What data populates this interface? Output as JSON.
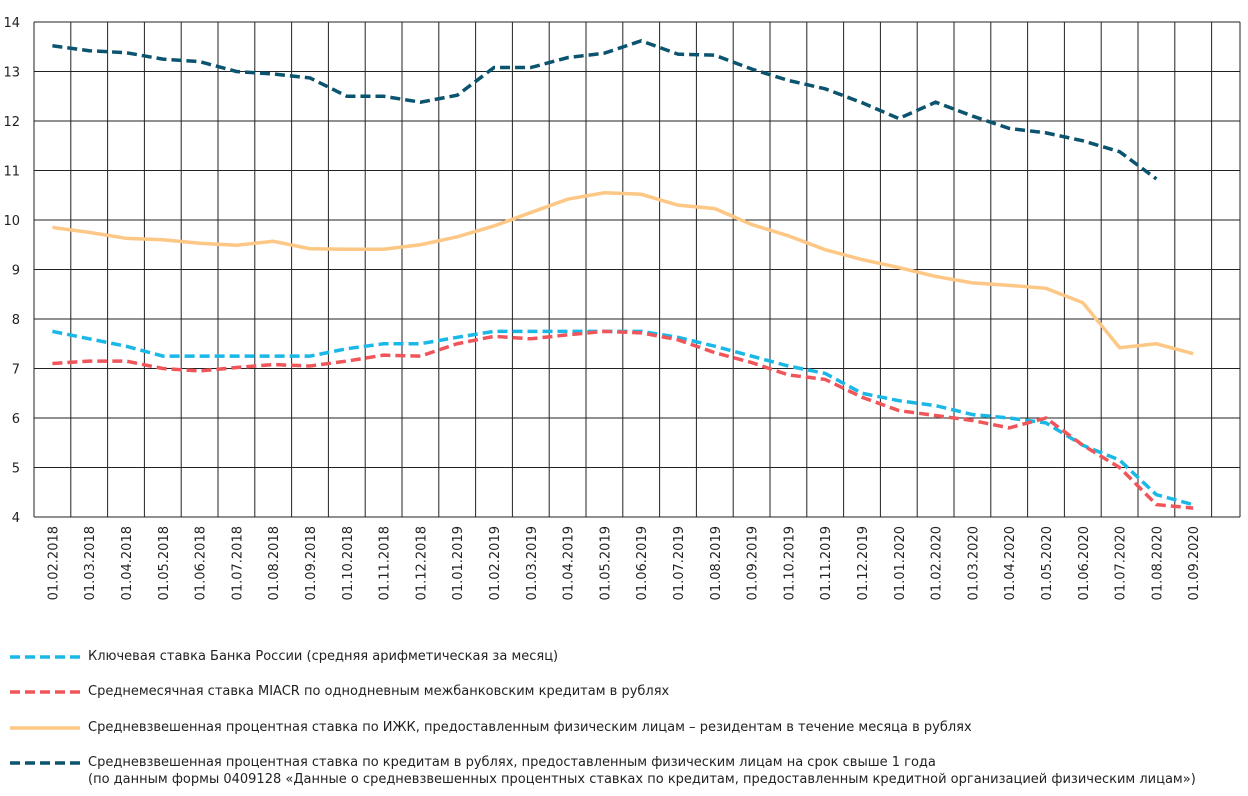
{
  "chart_data": {
    "type": "line",
    "categories": [
      "01.02.2018",
      "01.03.2018",
      "01.04.2018",
      "01.05.2018",
      "01.06.2018",
      "01.07.2018",
      "01.08.2018",
      "01.09.2018",
      "01.10.2018",
      "01.11.2018",
      "01.12.2018",
      "01.01.2019",
      "01.02.2019",
      "01.03.2019",
      "01.04.2019",
      "01.05.2019",
      "01.06.2019",
      "01.07.2019",
      "01.08.2019",
      "01.09.2019",
      "01.10.2019",
      "01.11.2019",
      "01.12.2019",
      "01.01.2020",
      "01.02.2020",
      "01.03.2020",
      "01.04.2020",
      "01.05.2020",
      "01.06.2020",
      "01.07.2020",
      "01.08.2020",
      "01.09.2020"
    ],
    "ylim": [
      4,
      14
    ],
    "yticks": [
      4,
      5,
      6,
      7,
      8,
      9,
      10,
      11,
      12,
      13,
      14
    ],
    "grid": true,
    "series": [
      {
        "name": "Ключевая ставка Банка России (средняя арифметическая за месяц)",
        "color": "#1ab8e6",
        "dashed": true,
        "values": [
          7.75,
          7.6,
          7.45,
          7.25,
          7.25,
          7.25,
          7.25,
          7.25,
          7.4,
          7.5,
          7.5,
          7.63,
          7.75,
          7.75,
          7.75,
          7.75,
          7.75,
          7.63,
          7.45,
          7.25,
          7.05,
          6.9,
          6.5,
          6.35,
          6.25,
          6.07,
          6.0,
          5.9,
          5.45,
          5.15,
          4.45,
          4.25
        ]
      },
      {
        "name": "Среднемесячная ставка MIACR по однодневным межбанковским кредитам в рублях",
        "color": "#f0555a",
        "dashed": true,
        "values": [
          7.1,
          7.15,
          7.15,
          7.0,
          6.95,
          7.02,
          7.08,
          7.05,
          7.15,
          7.27,
          7.25,
          7.5,
          7.65,
          7.6,
          7.68,
          7.75,
          7.72,
          7.58,
          7.32,
          7.12,
          6.87,
          6.78,
          6.42,
          6.15,
          6.05,
          5.95,
          5.8,
          6.0,
          5.45,
          5.0,
          4.25,
          4.18
        ]
      },
      {
        "name": "Средневзвешенная процентная ставка по ИЖК, предоставленным физическим лицам – резидентам в течение месяца в рублях",
        "color": "#fdc785",
        "dashed": false,
        "values": [
          9.85,
          9.75,
          9.63,
          9.6,
          9.53,
          9.49,
          9.57,
          9.42,
          9.41,
          9.41,
          9.5,
          9.66,
          9.88,
          10.15,
          10.42,
          10.55,
          10.52,
          10.3,
          10.23,
          9.91,
          9.68,
          9.4,
          9.2,
          9.04,
          8.86,
          8.73,
          8.68,
          8.62,
          8.33,
          7.42,
          7.5,
          7.3
        ]
      },
      {
        "name": "Средневзвешенная процентная ставка по кредитам в рублях, предоставленным физическим лицам на срок свыше 1 года\n(по данным формы 0409128 «Данные о средневзвешенных процентных ставках по кредитам, предоставленным кредитной организацией физическим лицам»)",
        "color": "#0b5470",
        "dashed": true,
        "values": [
          13.52,
          13.42,
          13.38,
          13.25,
          13.2,
          13.0,
          12.95,
          12.87,
          12.5,
          12.5,
          12.38,
          12.52,
          13.08,
          13.08,
          13.28,
          13.37,
          13.62,
          13.35,
          13.33,
          13.05,
          12.82,
          12.65,
          12.37,
          12.05,
          12.38,
          12.1,
          11.85,
          11.76,
          11.6,
          11.38,
          10.83,
          null
        ]
      }
    ]
  }
}
